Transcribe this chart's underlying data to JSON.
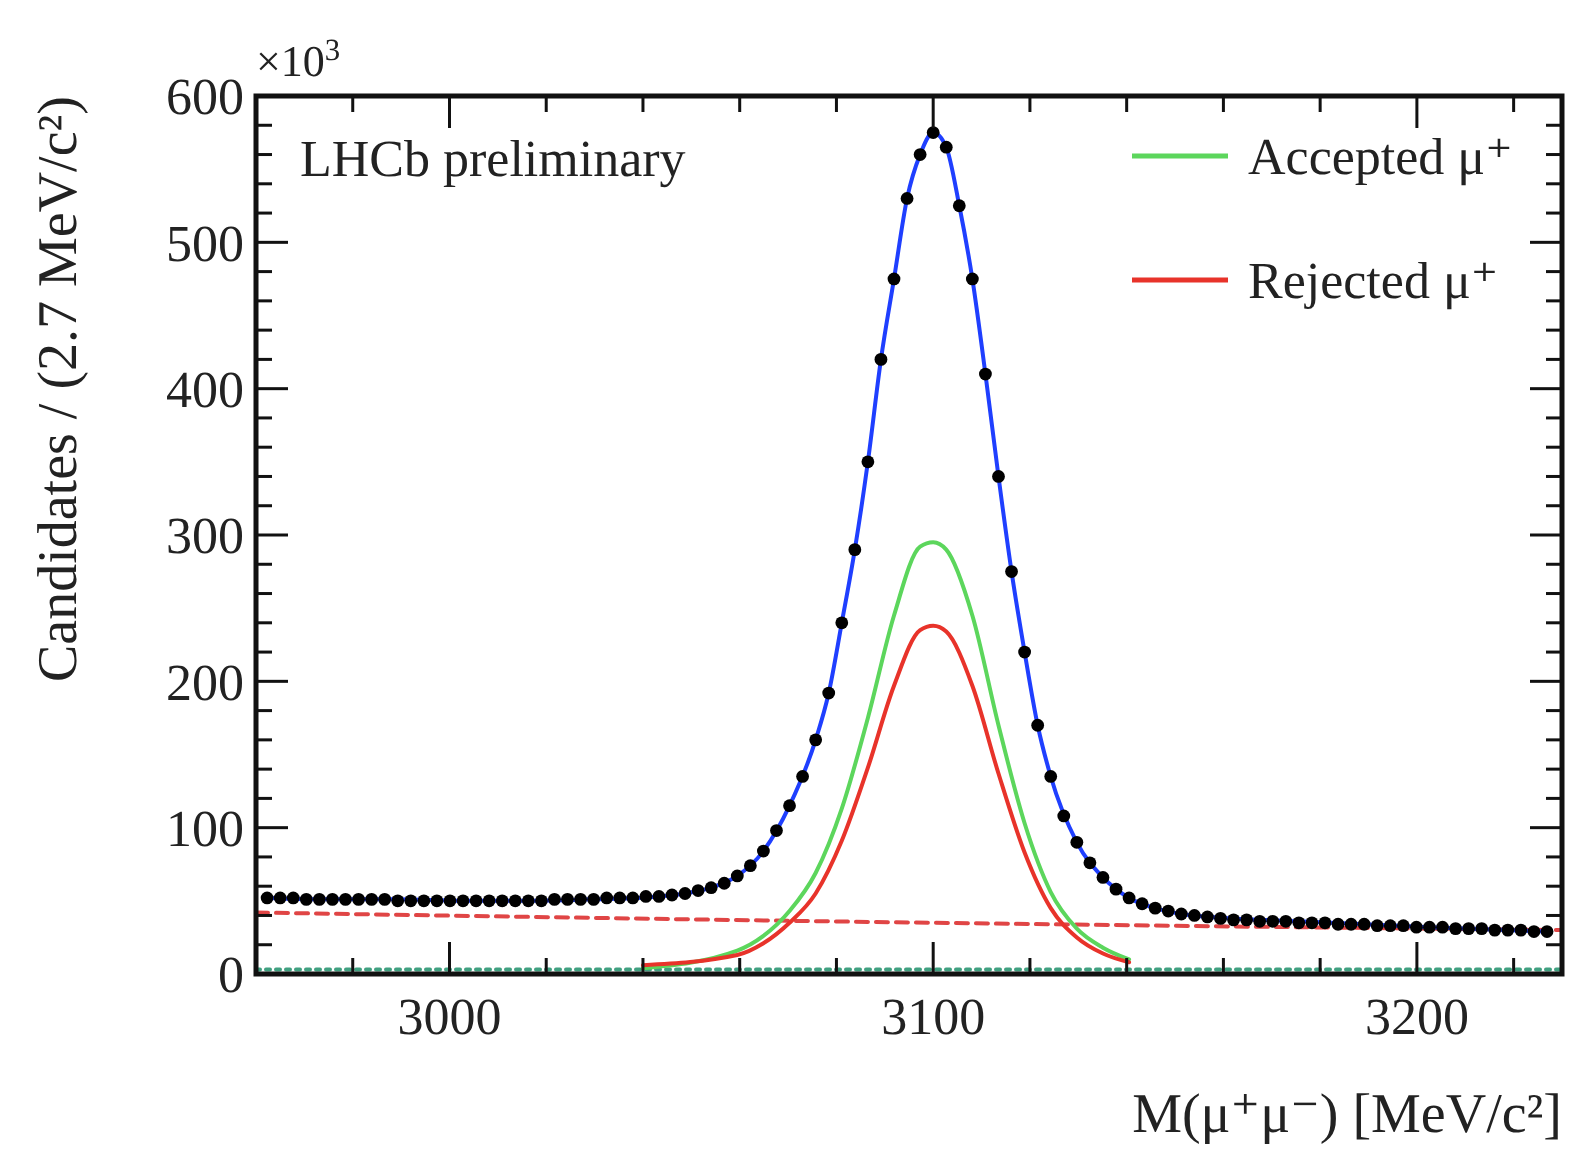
{
  "chart_data": {
    "type": "line",
    "xlabel": "M(μ⁺μ⁻) [MeV/c²]",
    "ylabel": "Candidates / (2.7 MeV/c²)",
    "annotations": [
      "LHCb preliminary",
      "×10$^{3}$"
    ],
    "xlim": [
      2960,
      3230
    ],
    "xticks": [
      {
        "value": 2980,
        "label": null
      },
      3000,
      {
        "value": 3020,
        "label": null
      },
      {
        "value": 3040,
        "label": null
      },
      {
        "value": 3060,
        "label": null
      },
      {
        "value": 3080,
        "label": null
      },
      3100,
      {
        "value": 3120,
        "label": null
      },
      {
        "value": 3140,
        "label": null
      },
      {
        "value": 3160,
        "label": null
      },
      {
        "value": 3180,
        "label": null
      },
      3200,
      {
        "value": 3220,
        "label": null
      }
    ],
    "ylim": [
      0,
      600
    ],
    "yticks": [
      0,
      {
        "value": 20,
        "label": null
      },
      {
        "value": 40,
        "label": null
      },
      {
        "value": 60,
        "label": null
      },
      {
        "value": 80,
        "label": null
      },
      100,
      {
        "value": 120,
        "label": null
      },
      {
        "value": 140,
        "label": null
      },
      {
        "value": 160,
        "label": null
      },
      {
        "value": 180,
        "label": null
      },
      200,
      {
        "value": 220,
        "label": null
      },
      {
        "value": 240,
        "label": null
      },
      {
        "value": 260,
        "label": null
      },
      {
        "value": 280,
        "label": null
      },
      300,
      {
        "value": 320,
        "label": null
      },
      {
        "value": 340,
        "label": null
      },
      {
        "value": 360,
        "label": null
      },
      {
        "value": 380,
        "label": null
      },
      400,
      {
        "value": 420,
        "label": null
      },
      {
        "value": 440,
        "label": null
      },
      {
        "value": 460,
        "label": null
      },
      {
        "value": 480,
        "label": null
      },
      500,
      {
        "value": 520,
        "label": null
      },
      {
        "value": 540,
        "label": null
      },
      {
        "value": 560,
        "label": null
      },
      {
        "value": 580,
        "label": null
      },
      600
    ],
    "legend": "top right",
    "grid": false,
    "series": [
      {
        "color": "#e04545",
        "line_style": "dashed",
        "x": [
          2960,
          3100,
          3230
        ],
        "values": [
          42,
          35,
          30
        ]
      },
      {
        "color": "#40a080",
        "line_style": "dotted",
        "x": [
          2960,
          3230
        ],
        "values": [
          3,
          3
        ]
      },
      {
        "name": "Accepted μ⁺",
        "color": "#5cd65c",
        "line_style": "solid",
        "x": [
          3040,
          3059.5,
          3064.9,
          3070.3,
          3075.7,
          3081.1,
          3086.5,
          3091.9,
          3097.3,
          3100,
          3102.7,
          3108.1,
          3113.5,
          3118.9,
          3124.3,
          3129.7,
          3135.1,
          3140.5
        ],
        "values": [
          4,
          16,
          26,
          43,
          69,
          113,
          175,
          245,
          292,
          295,
          290,
          245,
          170,
          103,
          56,
          31,
          18,
          10
        ]
      },
      {
        "name": "Rejected μ⁺",
        "color": "#e8332a",
        "line_style": "solid",
        "x": [
          3040,
          3059.5,
          3064.9,
          3070.3,
          3075.7,
          3081.1,
          3086.5,
          3091.9,
          3097.3,
          3100,
          3102.7,
          3108.1,
          3113.5,
          3118.9,
          3124.3,
          3129.7,
          3135.1,
          3140.5
        ],
        "values": [
          6,
          13,
          21,
          35,
          55,
          91,
          141,
          197,
          235,
          238,
          234,
          197,
          137,
          83,
          45,
          25,
          14,
          8
        ]
      },
      {
        "color": "#1f3fff",
        "line_style": "solid",
        "x": [
          2962.3,
          2975.8,
          2989.3,
          3002.8,
          3016.3,
          3029.8,
          3043.3,
          3048.7,
          3054.1,
          3059.5,
          3064.9,
          3070.3,
          3075.7,
          3078.4,
          3081.1,
          3083.8,
          3086.5,
          3089.2,
          3091.9,
          3094.6,
          3097.3,
          3100,
          3102.7,
          3105.4,
          3108.1,
          3110.8,
          3113.5,
          3116.2,
          3118.9,
          3121.6,
          3124.3,
          3129.7,
          3135.1,
          3140.5,
          3145.9,
          3151.3,
          3162.1,
          3175.6,
          3189.1,
          3202.6,
          3226.9
        ],
        "values": [
          52,
          51,
          51,
          50,
          50,
          51,
          53,
          55,
          59,
          67,
          84,
          115,
          160,
          192,
          240,
          290,
          350,
          420,
          475,
          530,
          560,
          575,
          565,
          525,
          475,
          410,
          340,
          275,
          220,
          170,
          135,
          90,
          66,
          52,
          45,
          41,
          38,
          36,
          34,
          32,
          29
        ]
      },
      {
        "type": "scatter",
        "color": "#000000",
        "marker": "circle",
        "x": [
          2962.3,
          2965,
          2967.7,
          2970.4,
          2973.1,
          2975.8,
          2978.5,
          2981.2,
          2983.9,
          2986.6,
          2989.3,
          2992,
          2994.7,
          2997.4,
          3000.1,
          3002.8,
          3005.5,
          3008.2,
          3010.9,
          3013.6,
          3016.3,
          3019,
          3021.7,
          3024.4,
          3027.1,
          3029.8,
          3032.5,
          3035.2,
          3037.9,
          3040.6,
          3043.3,
          3046,
          3048.7,
          3051.4,
          3054.1,
          3056.8,
          3059.5,
          3062.2,
          3064.9,
          3067.6,
          3070.3,
          3073,
          3075.7,
          3078.4,
          3081.1,
          3083.8,
          3086.5,
          3089.2,
          3091.9,
          3094.6,
          3097.3,
          3100,
          3102.7,
          3105.4,
          3108.1,
          3110.8,
          3113.5,
          3116.2,
          3118.9,
          3121.6,
          3124.3,
          3127,
          3129.7,
          3132.4,
          3135.1,
          3137.8,
          3140.5,
          3143.2,
          3145.9,
          3148.6,
          3151.3,
          3154,
          3156.7,
          3159.4,
          3162.1,
          3164.8,
          3167.5,
          3170.2,
          3172.9,
          3175.6,
          3178.3,
          3181,
          3183.7,
          3186.4,
          3189.1,
          3191.8,
          3194.5,
          3197.2,
          3199.9,
          3202.6,
          3205.3,
          3208,
          3210.7,
          3213.4,
          3216.1,
          3218.8,
          3221.5,
          3224.2,
          3226.9
        ],
        "values": [
          52,
          52,
          52,
          51,
          51,
          51,
          51,
          51,
          51,
          51,
          50,
          50,
          50,
          50,
          50,
          50,
          50,
          50,
          50,
          50,
          50,
          50,
          51,
          51,
          51,
          51,
          52,
          52,
          52,
          53,
          53,
          54,
          55,
          57,
          59,
          62,
          67,
          74,
          84,
          98,
          115,
          135,
          160,
          192,
          240,
          290,
          350,
          420,
          475,
          530,
          560,
          575,
          565,
          525,
          475,
          410,
          340,
          275,
          220,
          170,
          135,
          108,
          90,
          76,
          66,
          58,
          52,
          48,
          45,
          43,
          41,
          40,
          39,
          38,
          37,
          37,
          36,
          36,
          36,
          35,
          35,
          35,
          34,
          34,
          34,
          33,
          33,
          33,
          32,
          32,
          32,
          31,
          31,
          31,
          30,
          30,
          30,
          29,
          29
        ]
      }
    ]
  }
}
